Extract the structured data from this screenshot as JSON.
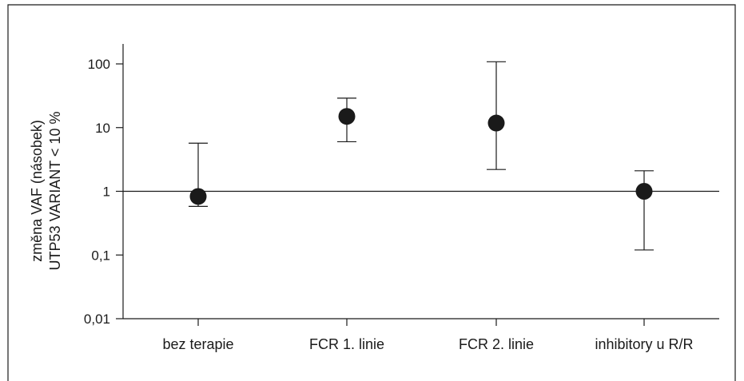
{
  "chart_data": {
    "type": "scatter",
    "title": "",
    "ylabel": [
      "změna VAF (násobek)",
      "UTP53 VARIANT < 10 %"
    ],
    "xlabel": "",
    "yscale": "log",
    "ylim": [
      0.01,
      100
    ],
    "yticks": [
      {
        "value": 100,
        "label": "100"
      },
      {
        "value": 10,
        "label": "10"
      },
      {
        "value": 1,
        "label": "1"
      },
      {
        "value": 0.1,
        "label": "0,1"
      },
      {
        "value": 0.01,
        "label": "0,01"
      }
    ],
    "reference_line": 1,
    "categories": [
      "bez terapie",
      "FCR 1. linie",
      "FCR 2. linie",
      "inhibitory u R/R"
    ],
    "points": [
      {
        "category": "bez terapie",
        "value": 0.83,
        "low": 0.58,
        "high": 5.7
      },
      {
        "category": "FCR 1. linie",
        "value": 15,
        "low": 6,
        "high": 29
      },
      {
        "category": "FCR 2. linie",
        "value": 11.8,
        "low": 2.2,
        "high": 108
      },
      {
        "category": "inhibitory u R/R",
        "value": 1.0,
        "low": 0.12,
        "high": 2.1
      }
    ],
    "grid": false,
    "colors": {
      "marker": "#1a1a1a",
      "line": "#1a1a1a"
    }
  }
}
